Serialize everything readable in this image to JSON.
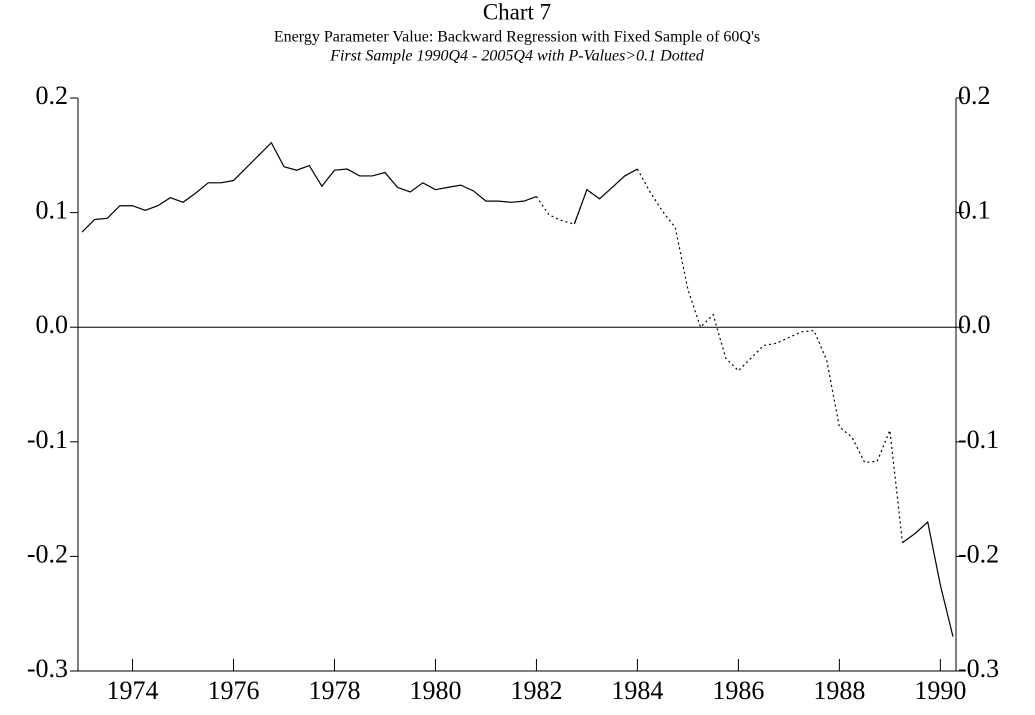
{
  "chart_data": {
    "type": "line",
    "title": "Chart 7",
    "subtitle": "Energy Parameter Value: Backward Regression with Fixed Sample of 60Q's",
    "note": "First Sample 1990Q4 - 2005Q4 with P-Values>0.1 Dotted",
    "x": [
      1973.0,
      1973.25,
      1973.5,
      1973.75,
      1974.0,
      1974.25,
      1974.5,
      1974.75,
      1975.0,
      1975.25,
      1975.5,
      1975.75,
      1976.0,
      1976.25,
      1976.5,
      1976.75,
      1977.0,
      1977.25,
      1977.5,
      1977.75,
      1978.0,
      1978.25,
      1978.5,
      1978.75,
      1979.0,
      1979.25,
      1979.5,
      1979.75,
      1980.0,
      1980.25,
      1980.5,
      1980.75,
      1981.0,
      1981.25,
      1981.5,
      1981.75,
      1982.0,
      1982.25,
      1982.5,
      1982.75,
      1983.0,
      1983.25,
      1983.5,
      1983.75,
      1984.0,
      1984.25,
      1984.5,
      1984.75,
      1985.0,
      1985.25,
      1985.5,
      1985.75,
      1986.0,
      1986.25,
      1986.5,
      1986.75,
      1987.0,
      1987.25,
      1987.5,
      1987.75,
      1988.0,
      1988.25,
      1988.5,
      1988.75,
      1989.0,
      1989.25,
      1989.5,
      1989.75,
      1990.0,
      1990.25
    ],
    "series": [
      {
        "color": "#000000",
        "line_style": "solid",
        "values": [
          0.083,
          0.094,
          0.095,
          0.106,
          0.106,
          0.102,
          0.106,
          0.113,
          0.109,
          0.117,
          0.126,
          0.126,
          0.128,
          0.139,
          0.15,
          0.161,
          0.14,
          0.137,
          0.141,
          0.123,
          0.137,
          0.138,
          0.132,
          0.132,
          0.135,
          0.122,
          0.118,
          0.126,
          0.12,
          0.122,
          0.124,
          0.119,
          0.11,
          0.11,
          0.109,
          0.11,
          0.114,
          null,
          null,
          0.09,
          0.12,
          0.112,
          0.122,
          0.132,
          0.138,
          null,
          null,
          null,
          null,
          null,
          null,
          null,
          null,
          null,
          null,
          null,
          null,
          null,
          null,
          null,
          null,
          null,
          null,
          null,
          null,
          -0.188,
          -0.18,
          -0.17,
          -0.225,
          -0.27
        ]
      },
      {
        "color": "#000000",
        "line_style": "dotted",
        "values": [
          null,
          null,
          null,
          null,
          null,
          null,
          null,
          null,
          null,
          null,
          null,
          null,
          null,
          null,
          null,
          null,
          null,
          null,
          null,
          null,
          null,
          null,
          null,
          null,
          null,
          null,
          null,
          null,
          null,
          null,
          null,
          null,
          null,
          null,
          null,
          null,
          0.114,
          0.098,
          0.093,
          0.09,
          0.12,
          0.112,
          null,
          null,
          0.138,
          0.118,
          0.101,
          0.087,
          0.033,
          0.0,
          0.011,
          -0.027,
          -0.038,
          -0.027,
          -0.016,
          -0.014,
          -0.009,
          -0.004,
          -0.003,
          -0.029,
          -0.087,
          -0.096,
          -0.118,
          -0.117,
          -0.09,
          -0.188,
          null,
          null,
          null,
          null
        ]
      }
    ],
    "xlim": [
      1972.92,
      1990.31
    ],
    "xticks": [
      1974,
      1976,
      1978,
      1980,
      1982,
      1984,
      1986,
      1988,
      1990
    ],
    "ylim": [
      -0.3,
      0.2
    ],
    "yticks": [
      -0.3,
      -0.2,
      -0.1,
      {
        "value": 0,
        "label": "0.0"
      },
      0.1,
      0.2
    ],
    "y2lim": [
      -0.3,
      0.2
    ],
    "y2ticks": [
      -0.3,
      -0.2,
      -0.1,
      {
        "value": 0,
        "label": "0.0"
      },
      0.1,
      0.2
    ],
    "zero_line": true
  }
}
